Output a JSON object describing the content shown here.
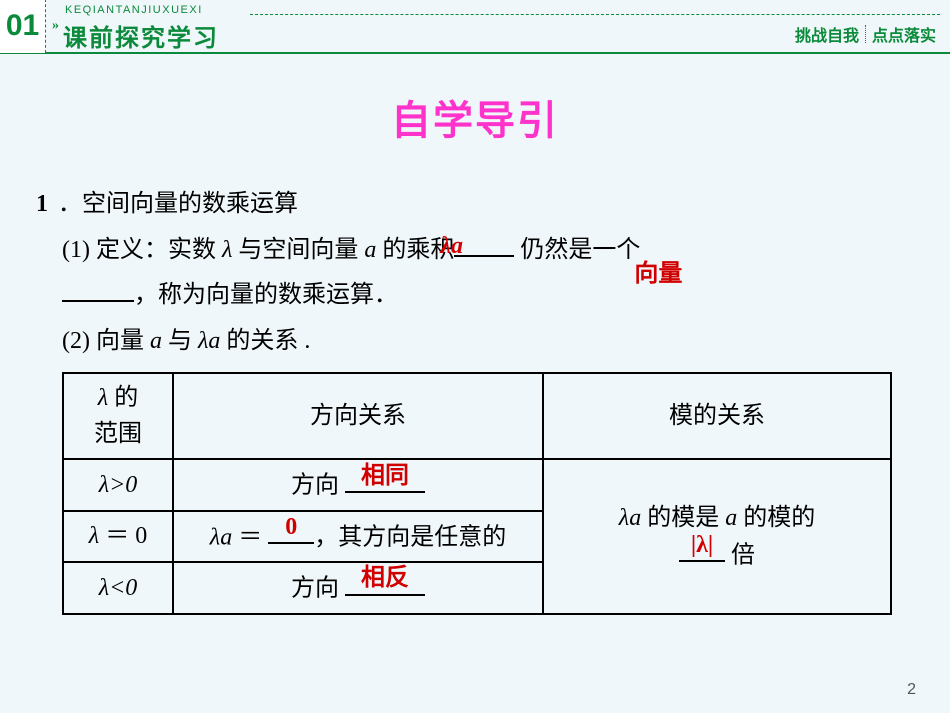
{
  "header": {
    "index": "01",
    "chevron": "»",
    "pinyin": "KEQIANTANJIUXUEXI",
    "title": "课前探究学习",
    "right1": "挑战自我",
    "right2": "点点落实"
  },
  "title": "自学导引",
  "section": {
    "num": "1",
    "dot": "．",
    "heading": "空间向量的数乘运算",
    "p1_a": "(1) 定义：实数 ",
    "lambda": "λ",
    "p1_b": " 与空间向量 ",
    "a": "a",
    "p1_c": " 的乘积",
    "fill1": "λa",
    "p1_d": " 仍然是一个",
    "fill2": "向量",
    "p1_e": "，称为向量的数乘运算．",
    "p2_a": "(2) 向量 ",
    "p2_b": " 与 ",
    "la": "λa",
    "p2_c": " 的关系 ."
  },
  "table": {
    "h1a": "λ",
    "h1b": " 的",
    "h1c": "范围",
    "h2": "方向关系",
    "h3": "模的关系",
    "r1c1": "λ>0",
    "r1c2a": "方向 ",
    "r1fill": "相同",
    "r2c1a": "λ",
    "r2c1b": " ＝ 0",
    "r2c2a": "λa",
    "r2c2b": " ＝ ",
    "r2fill": "0",
    "r2c2c": "，其方向是任意的",
    "r3c1": "λ<0",
    "r3c2a": "方向 ",
    "r3fill": "相反",
    "mod_a": "λa",
    "mod_b": " 的模是 ",
    "mod_c": "a",
    "mod_d": " 的模的",
    "mod_fill": "|λ|",
    "mod_e": " 倍"
  },
  "pagenum": "2",
  "colors": {
    "green": "#0a8a3a",
    "magenta": "#ff33cc",
    "red": "#d00000",
    "bg": "#f0f7fa"
  }
}
